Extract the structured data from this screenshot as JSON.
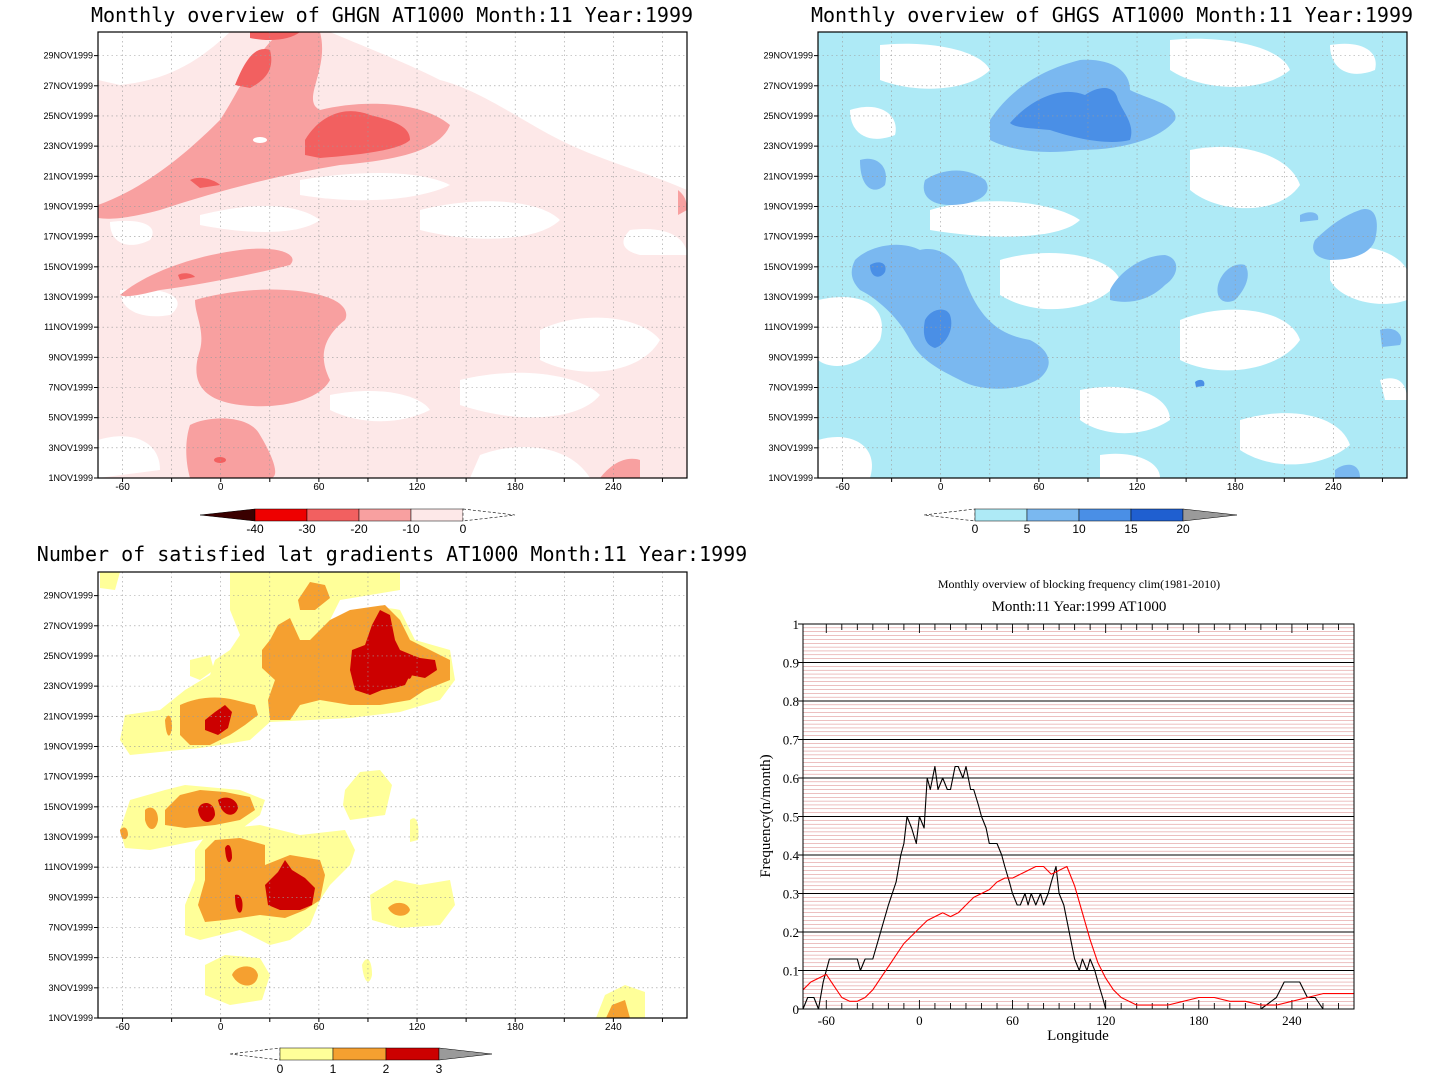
{
  "colors": {
    "red": [
      "#fde8e8",
      "#f8a0a0",
      "#f26060",
      "#ee0000",
      "#a00000",
      "#3a0000"
    ],
    "blue": [
      "#aeeaf6",
      "#7ab8f0",
      "#4a8fe6",
      "#1f5fd0"
    ],
    "count": [
      "#ffff99",
      "#f5a030",
      "#cc0000",
      "#9a9a9a"
    ]
  },
  "date_labels": [
    "1NOV1999",
    "3NOV1999",
    "5NOV1999",
    "7NOV1999",
    "9NOV1999",
    "11NOV1999",
    "13NOV1999",
    "15NOV1999",
    "17NOV1999",
    "19NOV1999",
    "21NOV1999",
    "23NOV1999",
    "25NOV1999",
    "27NOV1999",
    "29NOV1999"
  ],
  "lon_labels": [
    "-60",
    "0",
    "60",
    "120",
    "180",
    "240"
  ],
  "panels": {
    "ghgn": {
      "title": "Monthly overview of GHGN AT1000 Month:11 Year:1999",
      "colorbar": [
        "-40",
        "-30",
        "-20",
        "-10",
        "0"
      ]
    },
    "ghgs": {
      "title": "Monthly overview of GHGS AT1000 Month:11 Year:1999",
      "colorbar": [
        "0",
        "5",
        "10",
        "15",
        "20"
      ]
    },
    "count": {
      "title": "Number of satisfied lat gradients AT1000 Month:11 Year:1999",
      "colorbar": [
        "0",
        "1",
        "2",
        "3"
      ]
    },
    "freq": {
      "title": "Monthly overview of blocking frequency clim(1981-2010)",
      "subtitle": "Month:11 Year:1999  AT1000"
    }
  },
  "chart_data": {
    "type": "line",
    "xlabel": "Longitude",
    "ylabel": "Frequency(n/month)",
    "xlim": [
      -75,
      280
    ],
    "ylim": [
      0,
      1
    ],
    "xticks": [
      "-60",
      "0",
      "60",
      "120",
      "180",
      "240"
    ],
    "yticks": [
      "0",
      "0.1",
      "0.2",
      "0.3",
      "0.4",
      "0.5",
      "0.6",
      "0.7",
      "0.8",
      "0.9",
      "1"
    ],
    "series": [
      {
        "color": "#000000",
        "x": [
          -75,
          -72,
          -68,
          -65,
          -62,
          -58,
          -55,
          -50,
          -45,
          -40,
          -38,
          -35,
          -30,
          -25,
          -20,
          -15,
          -12,
          -10,
          -8,
          -5,
          -2,
          0,
          3,
          5,
          7,
          10,
          12,
          15,
          18,
          20,
          23,
          25,
          28,
          30,
          33,
          35,
          38,
          40,
          43,
          45,
          48,
          50,
          53,
          55,
          58,
          60,
          63,
          65,
          68,
          70,
          72,
          75,
          78,
          80,
          83,
          85,
          88,
          90,
          93,
          95,
          98,
          100,
          103,
          105,
          108,
          110,
          113,
          115,
          118,
          120,
          125,
          130,
          135,
          140,
          145,
          150,
          160,
          170,
          180,
          190,
          200,
          210,
          220,
          230,
          235,
          240,
          245,
          250,
          255,
          260,
          265,
          270,
          275,
          280
        ],
        "y": [
          0.0,
          0.03,
          0.03,
          0.0,
          0.07,
          0.13,
          0.13,
          0.13,
          0.13,
          0.13,
          0.1,
          0.13,
          0.13,
          0.2,
          0.27,
          0.33,
          0.4,
          0.43,
          0.5,
          0.47,
          0.43,
          0.5,
          0.47,
          0.6,
          0.57,
          0.63,
          0.57,
          0.6,
          0.57,
          0.57,
          0.63,
          0.63,
          0.6,
          0.63,
          0.57,
          0.57,
          0.53,
          0.5,
          0.47,
          0.43,
          0.43,
          0.43,
          0.4,
          0.37,
          0.33,
          0.3,
          0.27,
          0.27,
          0.3,
          0.27,
          0.3,
          0.27,
          0.3,
          0.27,
          0.3,
          0.33,
          0.37,
          0.3,
          0.27,
          0.23,
          0.17,
          0.13,
          0.1,
          0.13,
          0.1,
          0.13,
          0.1,
          0.07,
          0.03,
          0.0,
          0.0,
          0.0,
          0.0,
          0.0,
          0.0,
          0.0,
          0.0,
          0.0,
          0.0,
          0.0,
          0.0,
          0.0,
          0.0,
          0.03,
          0.07,
          0.07,
          0.07,
          0.03,
          0.03,
          0.0,
          0.0,
          0.0,
          0.0,
          0.0
        ]
      },
      {
        "color": "#ff0000",
        "x": [
          -75,
          -70,
          -65,
          -60,
          -55,
          -50,
          -45,
          -40,
          -35,
          -30,
          -25,
          -20,
          -15,
          -10,
          -5,
          0,
          5,
          10,
          15,
          20,
          25,
          30,
          35,
          40,
          45,
          50,
          55,
          60,
          65,
          70,
          75,
          80,
          85,
          90,
          95,
          100,
          105,
          110,
          115,
          120,
          125,
          130,
          135,
          140,
          150,
          160,
          170,
          180,
          190,
          200,
          210,
          220,
          230,
          240,
          250,
          260,
          270,
          280
        ],
        "y": [
          0.05,
          0.07,
          0.08,
          0.09,
          0.06,
          0.03,
          0.02,
          0.02,
          0.03,
          0.05,
          0.08,
          0.11,
          0.14,
          0.17,
          0.19,
          0.21,
          0.23,
          0.24,
          0.25,
          0.24,
          0.25,
          0.27,
          0.29,
          0.3,
          0.31,
          0.33,
          0.34,
          0.34,
          0.35,
          0.36,
          0.37,
          0.37,
          0.35,
          0.36,
          0.37,
          0.32,
          0.25,
          0.18,
          0.12,
          0.08,
          0.05,
          0.03,
          0.02,
          0.01,
          0.01,
          0.01,
          0.02,
          0.03,
          0.03,
          0.02,
          0.02,
          0.01,
          0.01,
          0.02,
          0.03,
          0.04,
          0.04,
          0.04
        ]
      }
    ]
  }
}
